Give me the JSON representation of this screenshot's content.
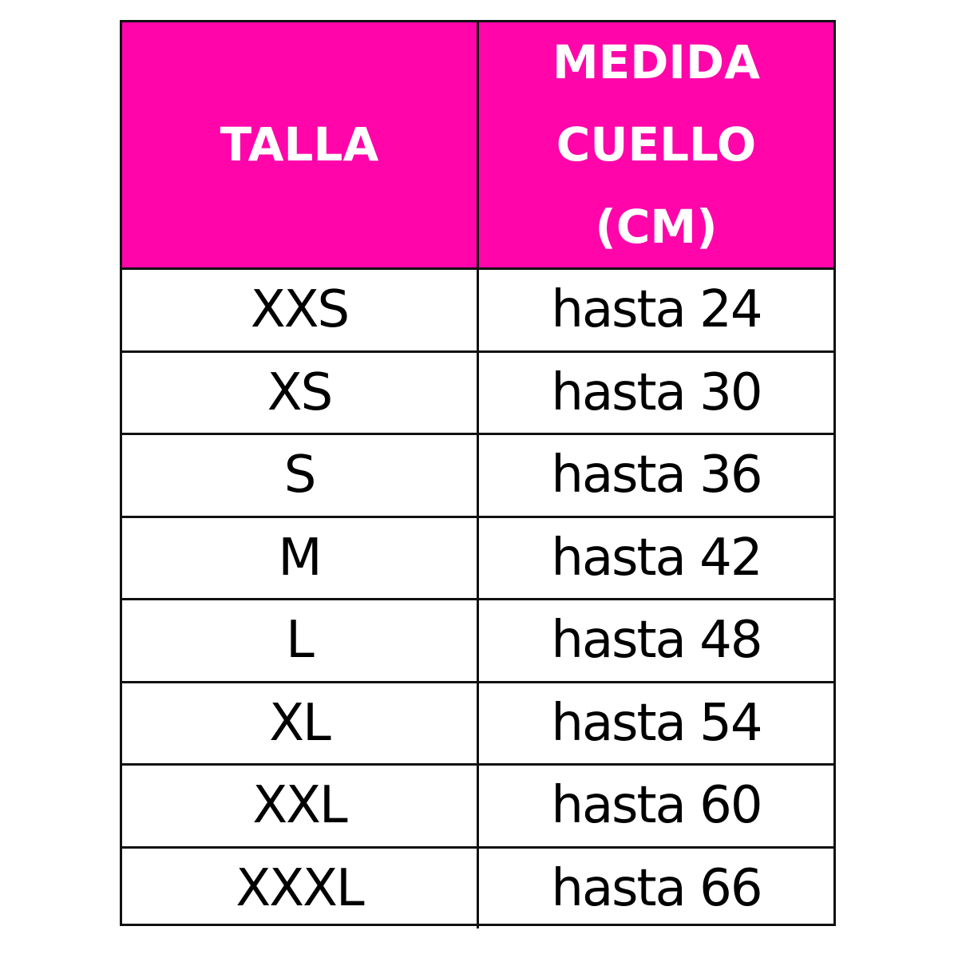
{
  "colors": {
    "header_bg": "#ff05aa",
    "header_text": "#ffffff",
    "border": "#111111"
  },
  "table": {
    "headers": {
      "size": "TALLA",
      "measure_lines": [
        "MEDIDA",
        "CUELLO",
        "(CM)"
      ]
    },
    "rows": [
      {
        "size": "XXS",
        "measure": "hasta 24"
      },
      {
        "size": "XS",
        "measure": "hasta 30"
      },
      {
        "size": "S",
        "measure": "hasta 36"
      },
      {
        "size": "M",
        "measure": "hasta 42"
      },
      {
        "size": "L",
        "measure": "hasta 48"
      },
      {
        "size": "XL",
        "measure": "hasta 54"
      },
      {
        "size": "XXL",
        "measure": "hasta 60"
      },
      {
        "size": "XXXL",
        "measure": "hasta 66"
      }
    ]
  }
}
